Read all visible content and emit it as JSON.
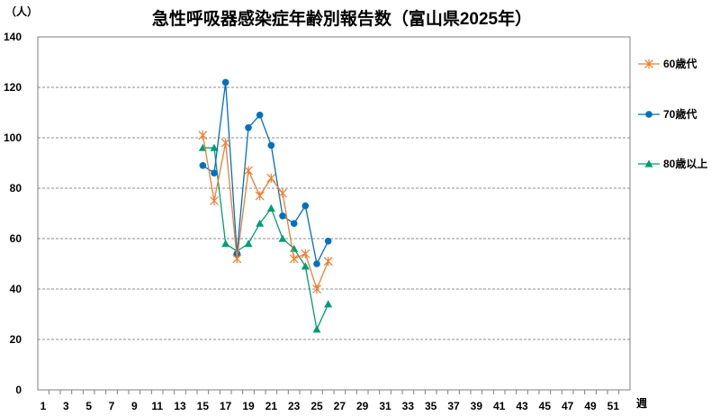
{
  "chart_data": {
    "type": "line",
    "title": "急性呼吸器感染症年齢別報告数（富山県2025年）",
    "y_unit": "（人）",
    "x_unit": "週",
    "ylim": [
      0,
      140
    ],
    "yticks": [
      0,
      20,
      40,
      60,
      80,
      100,
      120,
      140
    ],
    "xlim": [
      1,
      52
    ],
    "xtick_labels": [
      "1",
      "3",
      "5",
      "7",
      "9",
      "11",
      "13",
      "15",
      "17",
      "19",
      "21",
      "23",
      "25",
      "27",
      "29",
      "31",
      "33",
      "35",
      "37",
      "39",
      "41",
      "43",
      "45",
      "47",
      "49",
      "51"
    ],
    "grid": "horizontal dashed",
    "legend_position": "right",
    "x": [
      15,
      16,
      17,
      18,
      19,
      20,
      21,
      22,
      23,
      24,
      25,
      26
    ],
    "series": [
      {
        "name": "60歳代",
        "color": "#ED7D31",
        "marker": "asterisk",
        "values": [
          101,
          75,
          98,
          52,
          87,
          77,
          84,
          78,
          52,
          54,
          40,
          51
        ]
      },
      {
        "name": "70歳代",
        "color": "#0070C0",
        "marker": "circle",
        "values": [
          89,
          86,
          122,
          54,
          104,
          109,
          97,
          69,
          66,
          73,
          50,
          59
        ]
      },
      {
        "name": "80歳以上",
        "color": "#009E73",
        "marker": "triangle",
        "values": [
          96,
          96,
          58,
          55,
          58,
          66,
          72,
          60,
          56,
          49,
          24,
          34
        ]
      }
    ]
  }
}
